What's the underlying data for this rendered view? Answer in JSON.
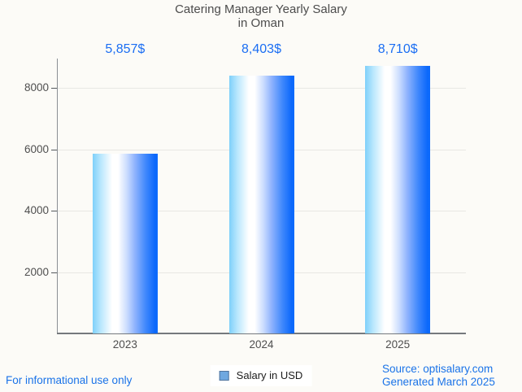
{
  "title": {
    "line1": "Catering Manager Yearly Salary",
    "line2": "in Oman"
  },
  "legend": {
    "label": "Salary in USD",
    "marker_color": "#6fa8e0",
    "marker_border": "#50749e"
  },
  "footer": {
    "left": "For informational use only",
    "source": "Source: optisalary.com",
    "generated": "Generated March 2025"
  },
  "colors": {
    "page_background": "#fcfbf7",
    "title_text": "#4c4c4c",
    "value_label_text": "#1b6ef3",
    "footer_text": "#1a73e8",
    "axis": "#75797d",
    "gridline": "#e8e8e4",
    "tick_label": "#4f4f4f",
    "bar_gradient_left": "#7ed0fa",
    "bar_gradient_highlight": "#ffffff",
    "bar_gradient_right": "#0b68fb"
  },
  "chart_data": {
    "type": "bar",
    "title": "Catering Manager Yearly Salary in Oman",
    "categories": [
      "2023",
      "2024",
      "2025"
    ],
    "values": [
      5857,
      8403,
      8710
    ],
    "value_labels": [
      "5,857$",
      "8,403$",
      "8,710$"
    ],
    "series_name": "Salary in USD",
    "xlabel": "",
    "ylabel": "",
    "ylim": [
      0,
      9000
    ],
    "yticks": [
      2000,
      4000,
      6000,
      8000
    ],
    "grid": true,
    "legend_position": "bottom-center",
    "bar_style": "horizontal blue cylinder gradient"
  }
}
